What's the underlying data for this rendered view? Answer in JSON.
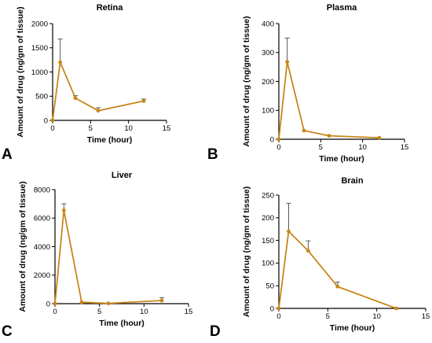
{
  "chart_data": [
    {
      "type": "line",
      "panel_letter": "A",
      "title": "Retina",
      "xlabel": "Time (hour)",
      "ylabel": "Amount of drug (ng/gm of tissue)",
      "xlim": [
        0,
        15
      ],
      "ylim": [
        0,
        2000
      ],
      "xticks": [
        0,
        5,
        10,
        15
      ],
      "yticks": [
        0,
        500,
        1000,
        1500,
        2000
      ],
      "grid": false,
      "series": [
        {
          "x": [
            0,
            1,
            3,
            6,
            12
          ],
          "y": [
            0,
            1200,
            460,
            200,
            400
          ],
          "error": [
            0,
            480,
            50,
            60,
            40
          ]
        }
      ]
    },
    {
      "type": "line",
      "panel_letter": "B",
      "title": "Plasma",
      "xlabel": "Time (hour)",
      "ylabel": "Amount of drug (ng/gm of tissue)",
      "xlim": [
        0,
        15
      ],
      "ylim": [
        0,
        400
      ],
      "xticks": [
        0,
        5,
        10,
        15
      ],
      "yticks": [
        0,
        100,
        200,
        300,
        400
      ],
      "grid": false,
      "series": [
        {
          "x": [
            0,
            1,
            3,
            6,
            12
          ],
          "y": [
            0,
            268,
            30,
            12,
            5
          ],
          "error": [
            0,
            82,
            0,
            0,
            0
          ]
        }
      ]
    },
    {
      "type": "line",
      "panel_letter": "C",
      "title": "Liver",
      "xlabel": "Time (hour)",
      "ylabel": "Amount of drug (ng/gm of tissue)",
      "xlim": [
        0,
        15
      ],
      "ylim": [
        0,
        8000
      ],
      "xticks": [
        0,
        5,
        10,
        15
      ],
      "yticks": [
        0,
        2000,
        4000,
        6000,
        8000
      ],
      "grid": false,
      "series": [
        {
          "x": [
            0,
            1,
            3,
            6,
            12
          ],
          "y": [
            0,
            6550,
            100,
            20,
            220
          ],
          "error": [
            0,
            450,
            0,
            0,
            200
          ]
        }
      ]
    },
    {
      "type": "line",
      "panel_letter": "D",
      "title": "Brain",
      "xlabel": "Time (hour)",
      "ylabel": "Amount of drug (ng/gm of tissue)",
      "xlim": [
        0,
        15
      ],
      "ylim": [
        0,
        250
      ],
      "xticks": [
        0,
        5,
        10,
        15
      ],
      "yticks": [
        0,
        50,
        100,
        150,
        200,
        250
      ],
      "grid": false,
      "series": [
        {
          "x": [
            0,
            1,
            3,
            6,
            12
          ],
          "y": [
            0,
            170,
            127,
            48,
            0
          ],
          "error": [
            0,
            62,
            22,
            10,
            0
          ]
        }
      ]
    }
  ],
  "colors": {
    "line": "#c8861a",
    "error_bar": "#555555",
    "axis": "#000000"
  }
}
